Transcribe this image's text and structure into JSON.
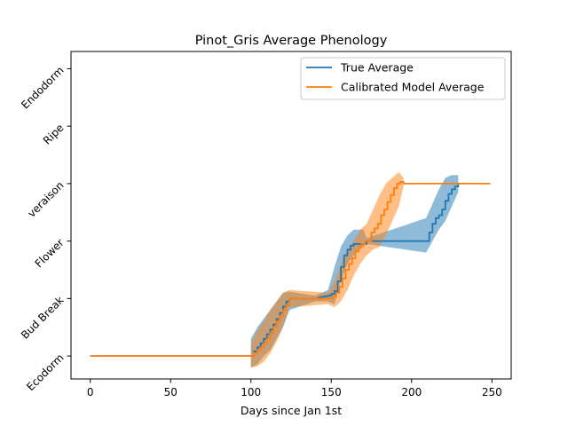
{
  "chart_data": {
    "type": "line",
    "title": "Pinot_Gris Average Phenology",
    "xlabel": "Days since Jan 1st",
    "ylabel": "",
    "xlim": [
      -12,
      262
    ],
    "ylim": [
      -0.4,
      5.3
    ],
    "xticks": [
      0,
      50,
      100,
      150,
      200,
      250
    ],
    "yticks": [
      0,
      1,
      2,
      3,
      4,
      5
    ],
    "ytick_labels": [
      "Ecodorm",
      "Bud Break",
      "Flower",
      "veraison",
      "Ripe",
      "Endodorm"
    ],
    "grid": false,
    "legend_position": "upper right",
    "series": [
      {
        "name": "True Average",
        "color": "#1f77b4",
        "band_color": "#1f77b4",
        "points": [
          [
            0,
            0
          ],
          [
            100,
            0
          ],
          [
            102,
            0.08
          ],
          [
            104,
            0.15
          ],
          [
            106,
            0.22
          ],
          [
            108,
            0.3
          ],
          [
            110,
            0.38
          ],
          [
            112,
            0.46
          ],
          [
            114,
            0.55
          ],
          [
            116,
            0.64
          ],
          [
            118,
            0.75
          ],
          [
            120,
            0.86
          ],
          [
            122,
            0.95
          ],
          [
            124,
            1
          ],
          [
            140,
            1
          ],
          [
            142,
            1.02
          ],
          [
            144,
            1.03
          ],
          [
            146,
            1.04
          ],
          [
            148,
            1.05
          ],
          [
            150,
            1.08
          ],
          [
            152,
            1.13
          ],
          [
            154,
            1.3
          ],
          [
            156,
            1.55
          ],
          [
            158,
            1.75
          ],
          [
            160,
            1.85
          ],
          [
            162,
            1.92
          ],
          [
            164,
            1.95
          ],
          [
            170,
            1.95
          ],
          [
            172,
            2
          ],
          [
            209,
            2
          ],
          [
            211,
            2.15
          ],
          [
            213,
            2.3
          ],
          [
            215,
            2.4
          ],
          [
            217,
            2.45
          ],
          [
            219,
            2.55
          ],
          [
            221,
            2.7
          ],
          [
            223,
            2.82
          ],
          [
            225,
            2.9
          ],
          [
            227,
            2.95
          ],
          [
            229,
            3
          ]
        ],
        "band": [
          [
            100,
            -0.2,
            0.3
          ],
          [
            104,
            -0.15,
            0.5
          ],
          [
            108,
            0,
            0.65
          ],
          [
            112,
            0.1,
            0.8
          ],
          [
            116,
            0.3,
            0.95
          ],
          [
            120,
            0.5,
            1.1
          ],
          [
            124,
            0.8,
            1.12
          ],
          [
            140,
            0.95,
            1.05
          ],
          [
            144,
            0.95,
            1.1
          ],
          [
            148,
            0.95,
            1.15
          ],
          [
            152,
            0.9,
            1.55
          ],
          [
            156,
            1.3,
            1.9
          ],
          [
            160,
            1.6,
            2.1
          ],
          [
            164,
            1.75,
            2.2
          ],
          [
            168,
            1.85,
            2.2
          ],
          [
            170,
            1.9,
            2.2
          ],
          [
            172,
            1.95,
            2.05
          ],
          [
            209,
            1.8,
            2.4
          ],
          [
            213,
            2.0,
            2.65
          ],
          [
            217,
            2.2,
            2.9
          ],
          [
            221,
            2.35,
            3.1
          ],
          [
            225,
            2.6,
            3.15
          ],
          [
            229,
            2.85,
            3.15
          ]
        ]
      },
      {
        "name": "Calibrated Model Average",
        "color": "#ff7f0e",
        "band_color": "#ff7f0e",
        "points": [
          [
            0,
            0
          ],
          [
            100,
            0
          ],
          [
            102,
            0.05
          ],
          [
            104,
            0.1
          ],
          [
            106,
            0.15
          ],
          [
            108,
            0.22
          ],
          [
            110,
            0.3
          ],
          [
            112,
            0.4
          ],
          [
            114,
            0.5
          ],
          [
            116,
            0.6
          ],
          [
            118,
            0.7
          ],
          [
            120,
            0.8
          ],
          [
            122,
            0.88
          ],
          [
            124,
            1
          ],
          [
            149,
            1
          ],
          [
            151,
            1.03
          ],
          [
            153,
            1.1
          ],
          [
            155,
            1.2
          ],
          [
            157,
            1.35
          ],
          [
            159,
            1.5
          ],
          [
            161,
            1.6
          ],
          [
            163,
            1.7
          ],
          [
            165,
            1.82
          ],
          [
            167,
            1.9
          ],
          [
            169,
            1.95
          ],
          [
            171,
            2
          ],
          [
            173,
            2
          ],
          [
            175,
            2.15
          ],
          [
            177,
            2.22
          ],
          [
            179,
            2.3
          ],
          [
            181,
            2.45
          ],
          [
            183,
            2.55
          ],
          [
            185,
            2.68
          ],
          [
            187,
            2.8
          ],
          [
            189,
            2.92
          ],
          [
            191,
            3
          ],
          [
            193,
            3.03
          ],
          [
            195,
            3
          ],
          [
            249,
            3
          ]
        ],
        "band": [
          [
            100,
            -0.2,
            0.2
          ],
          [
            104,
            -0.18,
            0.45
          ],
          [
            108,
            -0.1,
            0.6
          ],
          [
            112,
            0.05,
            0.8
          ],
          [
            116,
            0.25,
            0.95
          ],
          [
            120,
            0.5,
            1.1
          ],
          [
            124,
            0.85,
            1.15
          ],
          [
            148,
            0.9,
            1.1
          ],
          [
            152,
            0.85,
            1.3
          ],
          [
            156,
            0.95,
            1.6
          ],
          [
            160,
            1.15,
            1.85
          ],
          [
            164,
            1.4,
            2.0
          ],
          [
            168,
            1.6,
            2.2
          ],
          [
            172,
            1.75,
            2.3
          ],
          [
            176,
            1.85,
            2.55
          ],
          [
            180,
            1.9,
            2.8
          ],
          [
            184,
            2.1,
            3.0
          ],
          [
            188,
            2.35,
            3.1
          ],
          [
            192,
            2.6,
            3.2
          ],
          [
            195,
            2.95,
            3.1
          ]
        ]
      }
    ]
  }
}
